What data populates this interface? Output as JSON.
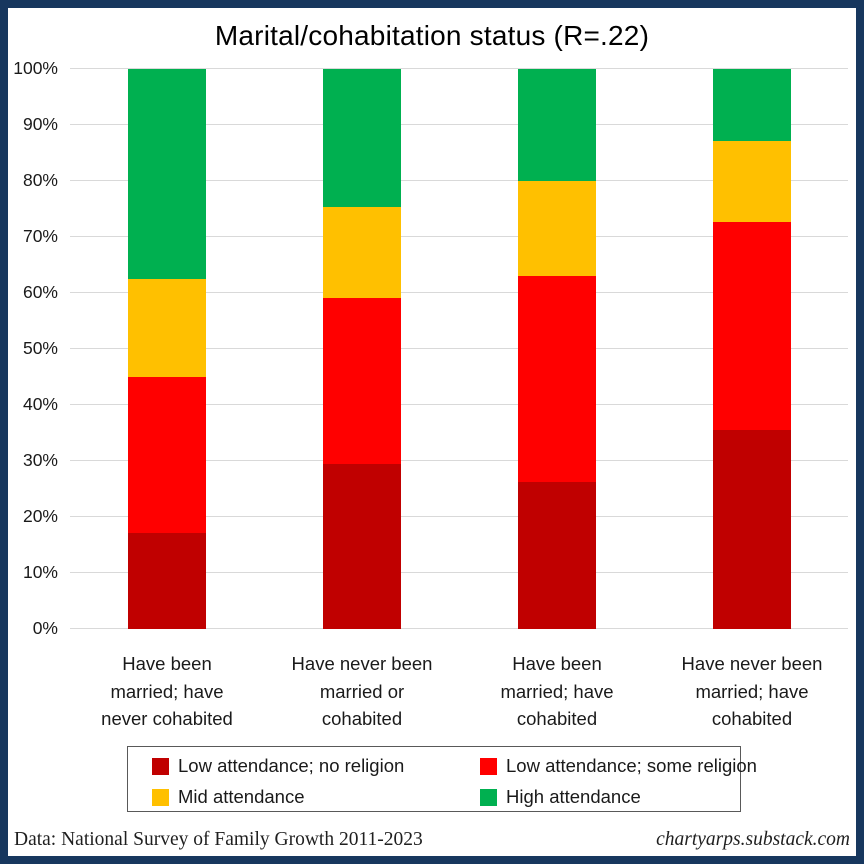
{
  "title": "Marital/cohabitation status (R=.22)",
  "footer": {
    "source": "Data: National Survey of Family Growth 2011-2023",
    "site": "chartyarps.substack.com"
  },
  "colors": {
    "dark_red": "#C00000",
    "red": "#FF0000",
    "gold": "#FFC000",
    "green": "#00B050",
    "frame_navy": "#17375E",
    "gridline": "#D9D9D9",
    "legend_border": "#595959"
  },
  "chart_data": {
    "type": "bar",
    "stacked": true,
    "title": "Marital/cohabitation status (R=.22)",
    "categories": [
      "Have been married; have never cohabited",
      "Have never been married or cohabited",
      "Have been married; have cohabited",
      "Have never been married; have cohabited"
    ],
    "category_lines": [
      [
        "Have been",
        "married; have",
        "never cohabited"
      ],
      [
        "Have never been",
        "married or",
        "cohabited"
      ],
      [
        "Have been",
        "married; have",
        "cohabited"
      ],
      [
        "Have never been",
        "married; have",
        "cohabited"
      ]
    ],
    "series": [
      {
        "name": "Low attendance; no religion",
        "color": "#C00000",
        "values": [
          17.2,
          29.4,
          26.3,
          35.5
        ]
      },
      {
        "name": "Low attendance; some religion",
        "color": "#FF0000",
        "values": [
          27.8,
          29.7,
          36.7,
          37.2
        ]
      },
      {
        "name": "Mid attendance",
        "color": "#FFC000",
        "values": [
          17.5,
          16.3,
          17.0,
          14.5
        ]
      },
      {
        "name": "High attendance",
        "color": "#00B050",
        "values": [
          37.5,
          24.6,
          20.0,
          12.8
        ]
      }
    ],
    "ylim": [
      0,
      100
    ],
    "ytick_step": 10,
    "ytick_labels": [
      "0%",
      "10%",
      "20%",
      "30%",
      "40%",
      "50%",
      "60%",
      "70%",
      "80%",
      "90%",
      "100%"
    ],
    "grid": true,
    "legend_position": "bottom-box"
  }
}
